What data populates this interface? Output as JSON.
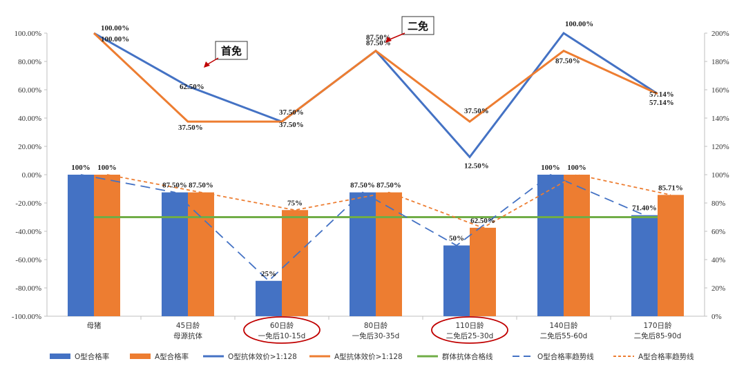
{
  "chart_data": {
    "type": "bar",
    "categories": [
      [
        "母猪"
      ],
      [
        "45日龄",
        "母源抗体"
      ],
      [
        "60日龄",
        "一免后10-15d"
      ],
      [
        "80日龄",
        "一免后30-35d"
      ],
      [
        "110日龄",
        "二免后25-30d"
      ],
      [
        "140日龄",
        "二免后55-60d"
      ],
      [
        "170日龄",
        "二免后85-90d"
      ]
    ],
    "highlighted_categories": [
      2,
      4
    ],
    "left_axis": {
      "ylim": [
        -100,
        100
      ],
      "ticks": [
        "100.00%",
        "80.00%",
        "60.00%",
        "40.00%",
        "20.00%",
        "0.00%",
        "-20.00%",
        "-40.00%",
        "-60.00%",
        "-80.00%",
        "-100.00%"
      ]
    },
    "right_axis": {
      "ylim": [
        0,
        200
      ],
      "ticks": [
        "200%",
        "180%",
        "160%",
        "140%",
        "120%",
        "100%",
        "80%",
        "60%",
        "40%",
        "20%",
        "0%"
      ]
    },
    "bars": [
      {
        "name": "O型合格率",
        "color": "#4472C4",
        "values": [
          100,
          87.5,
          25,
          87.5,
          50,
          100,
          71.4
        ],
        "labels": [
          "100%",
          "87.50%",
          "25%",
          "87.50%",
          "50%",
          "100%",
          "71.40%"
        ]
      },
      {
        "name": "A型合格率",
        "color": "#ED7D31",
        "values": [
          100,
          87.5,
          75,
          87.5,
          62.5,
          100,
          85.71
        ],
        "labels": [
          "100%",
          "87.50%",
          "75%",
          "87.50%",
          "62.50%",
          "100%",
          "85.71%"
        ]
      }
    ],
    "lines": [
      {
        "name": "O型抗体效价>1:128",
        "color": "#4472C4",
        "values": [
          100,
          62.5,
          37.5,
          87.5,
          12.5,
          100,
          57.14
        ],
        "labels": [
          "100.00%",
          "62.50%",
          "37.50%",
          "87.50%",
          "12.50%",
          "100.00%",
          "57.14%"
        ]
      },
      {
        "name": "A型抗体效价>1:128",
        "color": "#ED7D31",
        "values": [
          100,
          37.5,
          37.5,
          87.5,
          37.5,
          87.5,
          57.14
        ],
        "labels": [
          "100.00%",
          "37.50%",
          "37.50%",
          "87.50%",
          "37.50%",
          "87.50%",
          "57.14%"
        ]
      }
    ],
    "reference_line": {
      "name": "群体抗体合格线",
      "color": "#70AD47",
      "value": 70
    },
    "trend_lines": [
      {
        "name": "O型合格率趋势线",
        "color": "#4472C4",
        "style": "long-dash"
      },
      {
        "name": "A型合格率趋势线",
        "color": "#ED7D31",
        "style": "short-dash"
      }
    ],
    "annotations": [
      {
        "text": "首免",
        "points_to_category": 1,
        "series": "O型抗体效价>1:128"
      },
      {
        "text": "二免",
        "points_to_category": 3,
        "series": "A型抗体效价>1:128"
      }
    ],
    "grid": false,
    "legend": "bottom"
  }
}
